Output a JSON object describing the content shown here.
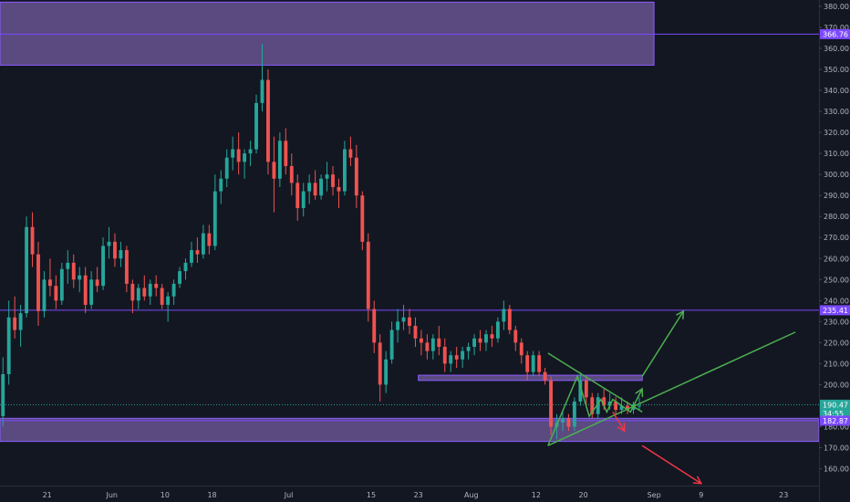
{
  "chart_data": {
    "type": "candlestick",
    "title": "",
    "xlabel": "",
    "ylabel": "",
    "x_axis": {
      "tick_labels": [
        "21",
        "Jun",
        "10",
        "18",
        "Jul",
        "15",
        "23",
        "Aug",
        "12",
        "20",
        "Sep",
        "9",
        "23"
      ],
      "tick_dates": [
        "2019-05-21",
        "2019-06-01",
        "2019-06-10",
        "2019-06-18",
        "2019-07-01",
        "2019-07-15",
        "2019-07-23",
        "2019-08-01",
        "2019-08-12",
        "2019-08-20",
        "2019-09-01",
        "2019-09-09",
        "2019-09-23"
      ],
      "range": [
        "2019-05-13",
        "2019-09-29"
      ]
    },
    "y_axis": {
      "tick_labels": [
        "160.00",
        "170.00",
        "180.00",
        "190.00",
        "200.00",
        "210.00",
        "220.00",
        "230.00",
        "240.00",
        "250.00",
        "260.00",
        "270.00",
        "280.00",
        "290.00",
        "300.00",
        "310.00",
        "320.00",
        "330.00",
        "340.00",
        "350.00",
        "360.00",
        "370.00",
        "380.00"
      ],
      "range": [
        152,
        383
      ]
    },
    "grid": false,
    "price_labels": [
      {
        "text": "366.76",
        "value": 366.76,
        "color": "#7b49ff"
      },
      {
        "text": "235.41",
        "value": 235.41,
        "color": "#7b49ff"
      },
      {
        "text": "190.47",
        "value": 190.47,
        "color": "#26a69a"
      },
      {
        "text": "34:55",
        "value": 186.2,
        "color": "#26a69a"
      },
      {
        "text": "182.87",
        "value": 182.87,
        "color": "#7b49ff"
      }
    ],
    "horizontal_lines": [
      {
        "value": 366.76,
        "color": "#7b49ff"
      },
      {
        "value": 235.41,
        "color": "#7b49ff"
      },
      {
        "value": 182.87,
        "color": "#7b49ff"
      },
      {
        "value": 190.47,
        "color": "#26a69a",
        "style": "dotted"
      }
    ],
    "zones": [
      {
        "x_start": "2019-05-13",
        "x_end": "2019-09-01",
        "y_low": 352,
        "y_high": 382
      },
      {
        "x_start": "2019-07-23",
        "x_end": "2019-08-30",
        "y_low": 202,
        "y_high": 204.5
      },
      {
        "x_start": "2019-05-13",
        "x_end": "2019-09-29",
        "y_low": 173,
        "y_high": 184
      }
    ],
    "trend_lines": [
      {
        "from": [
          "2019-08-14",
          215
        ],
        "to": [
          "2019-08-30",
          187
        ],
        "color": "#4caf50"
      },
      {
        "from": [
          "2019-08-14",
          171
        ],
        "to": [
          "2019-09-25",
          225
        ],
        "color": "#4caf50"
      }
    ],
    "projections": [
      {
        "points": [
          [
            "2019-08-14",
            171
          ],
          [
            "2019-08-19",
            204
          ],
          [
            "2019-08-21",
            185
          ],
          [
            "2019-08-23",
            193
          ],
          [
            "2019-08-24",
            187
          ],
          [
            "2019-08-25",
            193
          ],
          [
            "2019-08-28",
            187
          ],
          [
            "2019-08-30",
            198
          ]
        ],
        "color": "#4caf50",
        "arrow": true
      },
      {
        "points": [
          [
            "2019-08-30",
            204
          ],
          [
            "2019-09-06",
            235
          ]
        ],
        "color": "#4caf50",
        "arrow": true
      },
      {
        "points": [
          [
            "2019-08-25",
            187
          ],
          [
            "2019-08-27",
            178
          ]
        ],
        "color": "#f23645",
        "arrow": true
      },
      {
        "points": [
          [
            "2019-08-30",
            171
          ],
          [
            "2019-09-09",
            153
          ]
        ],
        "color": "#f23645",
        "arrow": true
      }
    ],
    "candles": [
      [
        "2019-05-13",
        185,
        213,
        180,
        205
      ],
      [
        "2019-05-14",
        205,
        240,
        200,
        232
      ],
      [
        "2019-05-15",
        232,
        242,
        222,
        226
      ],
      [
        "2019-05-16",
        226,
        238,
        218,
        234
      ],
      [
        "2019-05-17",
        234,
        280,
        232,
        275
      ],
      [
        "2019-05-18",
        275,
        282,
        256,
        262
      ],
      [
        "2019-05-19",
        262,
        268,
        228,
        235
      ],
      [
        "2019-05-20",
        235,
        254,
        232,
        250
      ],
      [
        "2019-05-21",
        250,
        260,
        242,
        247
      ],
      [
        "2019-05-22",
        247,
        252,
        236,
        240
      ],
      [
        "2019-05-23",
        240,
        258,
        238,
        255
      ],
      [
        "2019-05-24",
        255,
        264,
        248,
        258
      ],
      [
        "2019-05-25",
        258,
        262,
        246,
        250
      ],
      [
        "2019-05-26",
        250,
        256,
        244,
        252
      ],
      [
        "2019-05-27",
        252,
        256,
        234,
        238
      ],
      [
        "2019-05-28",
        238,
        254,
        236,
        250
      ],
      [
        "2019-05-29",
        250,
        256,
        244,
        247
      ],
      [
        "2019-05-30",
        247,
        270,
        245,
        266
      ],
      [
        "2019-05-31",
        266,
        275,
        260,
        268
      ],
      [
        "2019-06-01",
        268,
        272,
        256,
        260
      ],
      [
        "2019-06-02",
        260,
        268,
        256,
        264
      ],
      [
        "2019-06-03",
        264,
        266,
        244,
        248
      ],
      [
        "2019-06-04",
        248,
        250,
        234,
        240
      ],
      [
        "2019-06-05",
        240,
        248,
        236,
        246
      ],
      [
        "2019-06-06",
        246,
        252,
        240,
        242
      ],
      [
        "2019-06-07",
        242,
        250,
        238,
        248
      ],
      [
        "2019-06-08",
        248,
        252,
        242,
        246
      ],
      [
        "2019-06-09",
        246,
        248,
        236,
        238
      ],
      [
        "2019-06-10",
        238,
        244,
        230,
        242
      ],
      [
        "2019-06-11",
        242,
        250,
        238,
        248
      ],
      [
        "2019-06-12",
        248,
        256,
        246,
        254
      ],
      [
        "2019-06-13",
        254,
        260,
        250,
        258
      ],
      [
        "2019-06-14",
        258,
        268,
        256,
        264
      ],
      [
        "2019-06-15",
        264,
        270,
        258,
        262
      ],
      [
        "2019-06-16",
        262,
        276,
        260,
        272
      ],
      [
        "2019-06-17",
        272,
        276,
        262,
        266
      ],
      [
        "2019-06-18",
        266,
        300,
        264,
        292
      ],
      [
        "2019-06-19",
        292,
        302,
        286,
        298
      ],
      [
        "2019-06-20",
        298,
        312,
        294,
        308
      ],
      [
        "2019-06-21",
        308,
        318,
        302,
        312
      ],
      [
        "2019-06-22",
        312,
        320,
        300,
        306
      ],
      [
        "2019-06-23",
        306,
        312,
        298,
        310
      ],
      [
        "2019-06-24",
        310,
        316,
        304,
        312
      ],
      [
        "2019-06-25",
        312,
        338,
        310,
        334
      ],
      [
        "2019-06-26",
        334,
        362,
        330,
        345
      ],
      [
        "2019-06-27",
        345,
        350,
        300,
        306
      ],
      [
        "2019-06-28",
        306,
        318,
        282,
        298
      ],
      [
        "2019-06-29",
        298,
        320,
        294,
        316
      ],
      [
        "2019-06-30",
        316,
        322,
        300,
        304
      ],
      [
        "2019-07-01",
        304,
        310,
        290,
        296
      ],
      [
        "2019-07-02",
        296,
        300,
        278,
        284
      ],
      [
        "2019-07-03",
        284,
        296,
        280,
        292
      ],
      [
        "2019-07-04",
        292,
        300,
        286,
        296
      ],
      [
        "2019-07-05",
        296,
        302,
        288,
        290
      ],
      [
        "2019-07-06",
        290,
        300,
        288,
        298
      ],
      [
        "2019-07-07",
        298,
        306,
        292,
        300
      ],
      [
        "2019-07-08",
        300,
        304,
        290,
        294
      ],
      [
        "2019-07-09",
        294,
        298,
        284,
        292
      ],
      [
        "2019-07-10",
        292,
        316,
        290,
        312
      ],
      [
        "2019-07-11",
        312,
        318,
        304,
        308
      ],
      [
        "2019-07-12",
        308,
        314,
        284,
        290
      ],
      [
        "2019-07-13",
        290,
        292,
        264,
        268
      ],
      [
        "2019-07-14",
        268,
        272,
        230,
        236
      ],
      [
        "2019-07-15",
        236,
        240,
        215,
        220
      ],
      [
        "2019-07-16",
        220,
        224,
        192,
        200
      ],
      [
        "2019-07-17",
        200,
        216,
        196,
        212
      ],
      [
        "2019-07-18",
        212,
        230,
        210,
        226
      ],
      [
        "2019-07-19",
        226,
        236,
        220,
        230
      ],
      [
        "2019-07-20",
        230,
        238,
        226,
        232
      ],
      [
        "2019-07-21",
        232,
        236,
        224,
        228
      ],
      [
        "2019-07-22",
        228,
        232,
        218,
        222
      ],
      [
        "2019-07-23",
        222,
        226,
        214,
        220
      ],
      [
        "2019-07-24",
        220,
        224,
        212,
        216
      ],
      [
        "2019-07-25",
        216,
        224,
        212,
        222
      ],
      [
        "2019-07-26",
        222,
        228,
        214,
        218
      ],
      [
        "2019-07-27",
        218,
        222,
        206,
        210
      ],
      [
        "2019-07-28",
        210,
        216,
        206,
        214
      ],
      [
        "2019-07-29",
        214,
        218,
        208,
        212
      ],
      [
        "2019-07-30",
        212,
        218,
        208,
        216
      ],
      [
        "2019-07-31",
        216,
        220,
        212,
        218
      ],
      [
        "2019-08-01",
        218,
        224,
        214,
        222
      ],
      [
        "2019-08-02",
        222,
        226,
        216,
        220
      ],
      [
        "2019-08-03",
        220,
        226,
        216,
        224
      ],
      [
        "2019-08-04",
        224,
        228,
        218,
        222
      ],
      [
        "2019-08-05",
        222,
        232,
        220,
        230
      ],
      [
        "2019-08-06",
        230,
        240,
        226,
        236
      ],
      [
        "2019-08-07",
        236,
        238,
        224,
        226
      ],
      [
        "2019-08-08",
        226,
        228,
        216,
        220
      ],
      [
        "2019-08-09",
        220,
        222,
        210,
        214
      ],
      [
        "2019-08-10",
        214,
        216,
        202,
        206
      ],
      [
        "2019-08-11",
        206,
        216,
        204,
        214
      ],
      [
        "2019-08-12",
        214,
        216,
        204,
        206
      ],
      [
        "2019-08-13",
        206,
        208,
        200,
        202
      ],
      [
        "2019-08-14",
        202,
        204,
        176,
        180
      ],
      [
        "2019-08-15",
        180,
        186,
        174,
        182
      ],
      [
        "2019-08-16",
        182,
        188,
        178,
        184
      ],
      [
        "2019-08-17",
        184,
        186,
        178,
        180
      ],
      [
        "2019-08-18",
        180,
        194,
        178,
        192
      ],
      [
        "2019-08-19",
        192,
        206,
        190,
        202
      ],
      [
        "2019-08-20",
        202,
        204,
        190,
        194
      ],
      [
        "2019-08-21",
        194,
        196,
        184,
        186
      ],
      [
        "2019-08-22",
        186,
        196,
        184,
        194
      ],
      [
        "2019-08-23",
        194,
        198,
        188,
        190
      ],
      [
        "2019-08-24",
        190,
        196,
        188,
        192
      ],
      [
        "2019-08-25",
        192,
        194,
        186,
        188
      ],
      [
        "2019-08-26",
        188,
        194,
        186,
        190
      ],
      [
        "2019-08-27",
        190,
        192,
        186,
        188
      ],
      [
        "2019-08-28",
        188,
        192,
        186,
        190
      ],
      [
        "2019-08-29",
        190,
        194,
        188,
        190
      ]
    ],
    "candle_colors": {
      "up": "#26a69a",
      "down": "#ef5350"
    }
  }
}
